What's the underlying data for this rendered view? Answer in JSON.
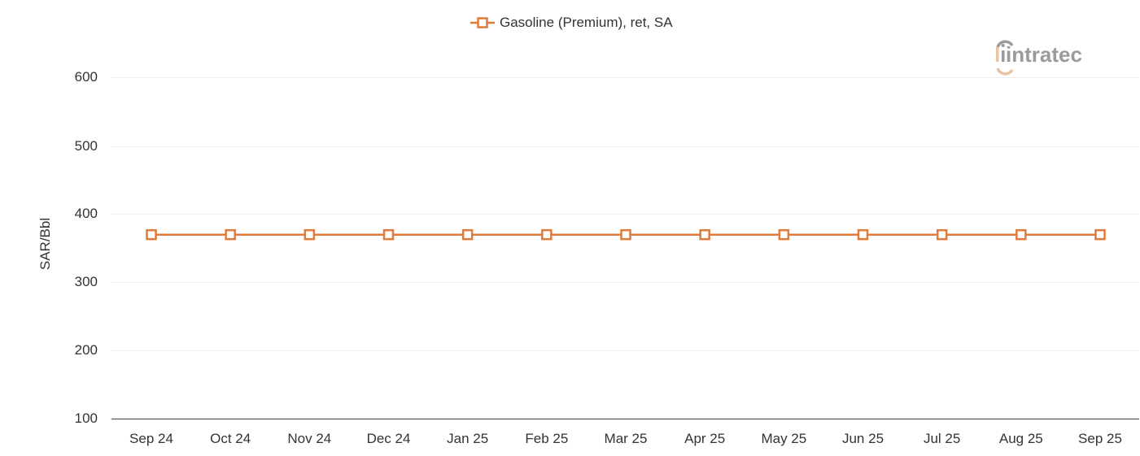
{
  "chart_data": {
    "type": "line",
    "title": "",
    "xlabel": "",
    "ylabel": "SAR/Bbl",
    "ylim": [
      100,
      600
    ],
    "yticks": [
      600,
      500,
      400,
      300,
      200,
      100
    ],
    "grid": true,
    "legend_position": "top",
    "categories": [
      "Sep 24",
      "Oct 24",
      "Nov 24",
      "Dec 24",
      "Jan 25",
      "Feb 25",
      "Mar 25",
      "Apr 25",
      "May 25",
      "Jun 25",
      "Jul 25",
      "Aug 25",
      "Sep 25"
    ],
    "series": [
      {
        "name": "Gasoline (Premium), ret, SA",
        "color": "#e07b3c",
        "marker": "square-open",
        "values": [
          370,
          370,
          370,
          370,
          370,
          370,
          370,
          370,
          370,
          370,
          370,
          370,
          370
        ]
      }
    ]
  },
  "legend": {
    "label": "Gasoline (Premium), ret, SA"
  },
  "yaxis": {
    "label": "SAR/Bbl",
    "ticks": [
      "600",
      "500",
      "400",
      "300",
      "200",
      "100"
    ]
  },
  "xaxis": {
    "ticks": [
      "Sep 24",
      "Oct 24",
      "Nov 24",
      "Dec 24",
      "Jan 25",
      "Feb 25",
      "Mar 25",
      "Apr 25",
      "May 25",
      "Jun 25",
      "Jul 25",
      "Aug 25",
      "Sep 25"
    ]
  },
  "watermark": {
    "text": "intratec",
    "colors": {
      "text": "#9a9a9a",
      "accent": "#e8c3a4"
    }
  }
}
